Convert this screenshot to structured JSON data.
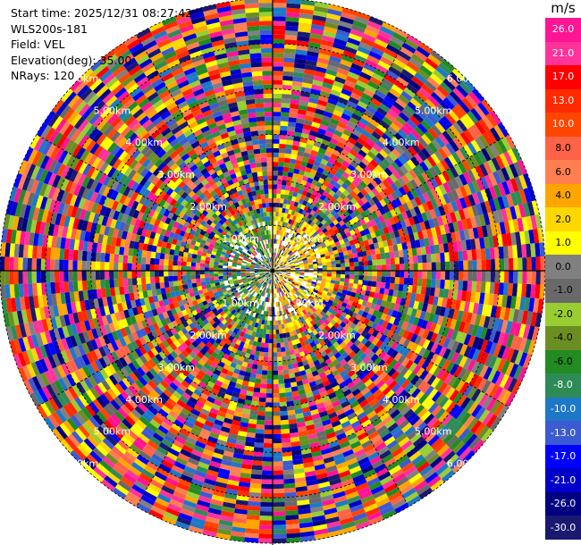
{
  "info": {
    "start_time": "Start time: 2025/12/31 08:27:42",
    "station": "WLS200s-181",
    "field": "Field: VEL",
    "elevation": "Elevation(deg): 35.00",
    "nrays": "NRays: 120"
  },
  "chart_data": {
    "type": "heatmap",
    "projection": "polar-ppi",
    "field": "VEL",
    "unit": "m/s",
    "nrays": 120,
    "range_rings_km": [
      1,
      2,
      3,
      4,
      5,
      6
    ],
    "range_ring_labels": [
      "1.00km",
      "2.00km",
      "3.00km",
      "4.00km",
      "5.00km",
      "6.00km"
    ],
    "colorbar": {
      "title": "m/s",
      "ticks": [
        "26.0",
        "21.0",
        "17.0",
        "13.0",
        "10.0",
        "8.0",
        "6.0",
        "4.0",
        "2.0",
        "1.0",
        "0.0",
        "-1.0",
        "-2.0",
        "-4.0",
        "-6.0",
        "-8.0",
        "-10.0",
        "-13.0",
        "-17.0",
        "-21.0",
        "-26.0",
        "-30.0"
      ],
      "colors": [
        "#ff1493",
        "#ff3399",
        "#ff0000",
        "#ff2a00",
        "#ff4500",
        "#ff6347",
        "#ff7f50",
        "#ffa500",
        "#ffd700",
        "#ffff00",
        "#808080",
        "#696969",
        "#9acd32",
        "#6b8e23",
        "#228b22",
        "#2e8b57",
        "#1e78c8",
        "#3c5ad2",
        "#0000ff",
        "#0000c8",
        "#000080",
        "#191970"
      ]
    }
  }
}
